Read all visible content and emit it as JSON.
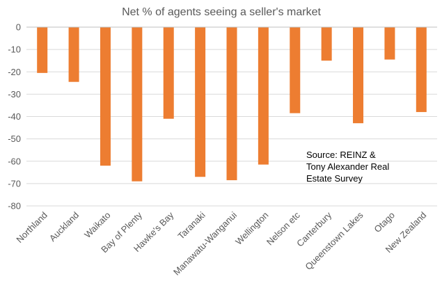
{
  "chart_data": {
    "type": "bar",
    "title": "Net % of agents seeing a seller's market",
    "xlabel": "",
    "ylabel": "",
    "categories": [
      "Northland",
      "Auckland",
      "Waikato",
      "Bay of Plenty",
      "Hawke's Bay",
      "Taranaki",
      "Manawatu-Wanganui",
      "Wellington",
      "Nelson etc",
      "Canterbury",
      "Queenstown Lakes",
      "Otago",
      "New Zealand"
    ],
    "values": [
      -20.5,
      -24.5,
      -62,
      -69,
      -41,
      -67,
      -68.5,
      -61.5,
      -38.5,
      -15,
      -43,
      -14.5,
      -38
    ],
    "ylim": [
      -80,
      0
    ],
    "yticks": [
      0,
      -10,
      -20,
      -30,
      -40,
      -50,
      -60,
      -70,
      -80
    ],
    "grid": true,
    "bar_color": "#ED7D31",
    "annotation": [
      "Source: REINZ &",
      "Tony Alexander  Real",
      "Estate Survey"
    ]
  }
}
